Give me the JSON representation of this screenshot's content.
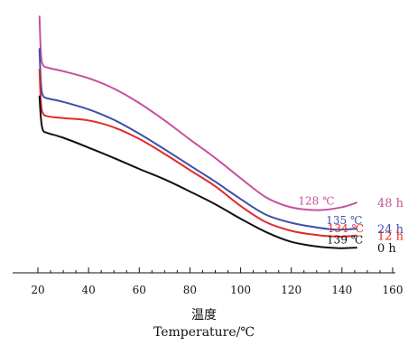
{
  "chart_data": {
    "type": "line",
    "title": "",
    "xlabel_cn": "温度",
    "xlabel_en": "Temperature/℃",
    "ylabel": "",
    "xlim": [
      20,
      160
    ],
    "x_ticks": [
      "20",
      "40",
      "60",
      "80",
      "100",
      "120",
      "140",
      "160"
    ],
    "x_tick_values": [
      20,
      40,
      60,
      80,
      100,
      120,
      140,
      160
    ],
    "y_axis_shown": false,
    "grid": false,
    "legend": "none",
    "series": [
      {
        "name": "48 h",
        "color": "#c8509b",
        "peak_label": "128 ℃",
        "points": [
          [
            20.6,
            40.4
          ],
          [
            21.2,
            33.8
          ],
          [
            22,
            31.9
          ],
          [
            24,
            31.4
          ],
          [
            30,
            30.8
          ],
          [
            40,
            29.6
          ],
          [
            50,
            27.8
          ],
          [
            60,
            25.3
          ],
          [
            70,
            22.3
          ],
          [
            80,
            19.0
          ],
          [
            90,
            15.8
          ],
          [
            100,
            12.3
          ],
          [
            110,
            9.0
          ],
          [
            118,
            7.5
          ],
          [
            125,
            6.9
          ],
          [
            132,
            6.8
          ],
          [
            140,
            7.3
          ],
          [
            146,
            8.1
          ]
        ]
      },
      {
        "name": "24 h",
        "color": "#3d4fa8",
        "peak_label": "135 ℃",
        "points": [
          [
            20.6,
            34.8
          ],
          [
            21.2,
            28.7
          ],
          [
            22,
            26.6
          ],
          [
            24,
            26.1
          ],
          [
            30,
            25.5
          ],
          [
            40,
            24.2
          ],
          [
            50,
            22.4
          ],
          [
            60,
            20.0
          ],
          [
            70,
            17.3
          ],
          [
            80,
            14.5
          ],
          [
            90,
            11.7
          ],
          [
            100,
            8.7
          ],
          [
            110,
            6.0
          ],
          [
            120,
            4.6
          ],
          [
            130,
            3.8
          ],
          [
            138,
            3.4
          ],
          [
            146,
            3.6
          ]
        ]
      },
      {
        "name": "12 h",
        "color": "#e02a2a",
        "peak_label": "134 ℃",
        "points": [
          [
            20.6,
            31.2
          ],
          [
            21.2,
            25.4
          ],
          [
            22,
            23.5
          ],
          [
            24,
            23.0
          ],
          [
            30,
            22.7
          ],
          [
            40,
            22.3
          ],
          [
            50,
            21.1
          ],
          [
            60,
            19.1
          ],
          [
            70,
            16.5
          ],
          [
            80,
            13.7
          ],
          [
            90,
            10.9
          ],
          [
            100,
            7.5
          ],
          [
            110,
            4.7
          ],
          [
            120,
            3.2
          ],
          [
            128,
            2.6
          ],
          [
            134,
            2.3
          ],
          [
            140,
            2.2
          ],
          [
            146,
            2.4
          ]
        ]
      },
      {
        "name": "0 h",
        "color": "#111111",
        "peak_label": "139 ℃",
        "points": [
          [
            20.6,
            26.6
          ],
          [
            21.2,
            22.6
          ],
          [
            22,
            20.6
          ],
          [
            24,
            20.1
          ],
          [
            30,
            19.3
          ],
          [
            40,
            17.6
          ],
          [
            50,
            15.8
          ],
          [
            60,
            13.9
          ],
          [
            70,
            12.1
          ],
          [
            80,
            10.0
          ],
          [
            90,
            7.8
          ],
          [
            100,
            5.3
          ],
          [
            110,
            3.0
          ],
          [
            120,
            1.3
          ],
          [
            130,
            0.5
          ],
          [
            139,
            0.2
          ],
          [
            146,
            0.3
          ]
        ]
      }
    ]
  }
}
